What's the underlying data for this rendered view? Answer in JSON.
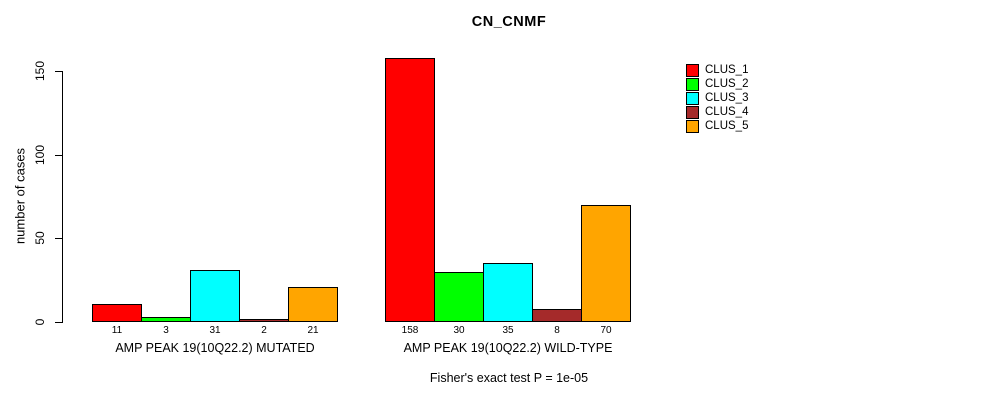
{
  "title": "CN_CNMF",
  "y_axis": {
    "label": "number of cases",
    "ticks": [
      0,
      50,
      100,
      150
    ]
  },
  "footer": "Fisher's exact test P = 1e-05",
  "legend": {
    "items": [
      {
        "label": "CLUS_1",
        "color": "#FF0000"
      },
      {
        "label": "CLUS_2",
        "color": "#00FF00"
      },
      {
        "label": "CLUS_3",
        "color": "#00FFFF"
      },
      {
        "label": "CLUS_4",
        "color": "#A52A2A"
      },
      {
        "label": "CLUS_5",
        "color": "#FFA500"
      }
    ]
  },
  "chart_data": {
    "type": "bar",
    "title": "CN_CNMF",
    "xlabel": "",
    "ylabel": "number of cases",
    "ylim": [
      0,
      150
    ],
    "yticks": [
      0,
      50,
      100,
      150
    ],
    "grid": false,
    "legend_position": "top-right",
    "categories": [
      "AMP PEAK 19(10Q22.2) MUTATED",
      "AMP PEAK 19(10Q22.2) WILD-TYPE"
    ],
    "series": [
      {
        "name": "CLUS_1",
        "color": "#FF0000",
        "values": [
          11,
          158
        ]
      },
      {
        "name": "CLUS_2",
        "color": "#00FF00",
        "values": [
          3,
          30
        ]
      },
      {
        "name": "CLUS_3",
        "color": "#00FFFF",
        "values": [
          31,
          35
        ]
      },
      {
        "name": "CLUS_4",
        "color": "#A52A2A",
        "values": [
          2,
          8
        ]
      },
      {
        "name": "CLUS_5",
        "color": "#FFA500",
        "values": [
          21,
          70
        ]
      }
    ],
    "bar_value_labels": [
      [
        11,
        3,
        31,
        2,
        21
      ],
      [
        158,
        30,
        35,
        8,
        70
      ]
    ],
    "annotation": "Fisher's exact test P = 1e-05"
  }
}
